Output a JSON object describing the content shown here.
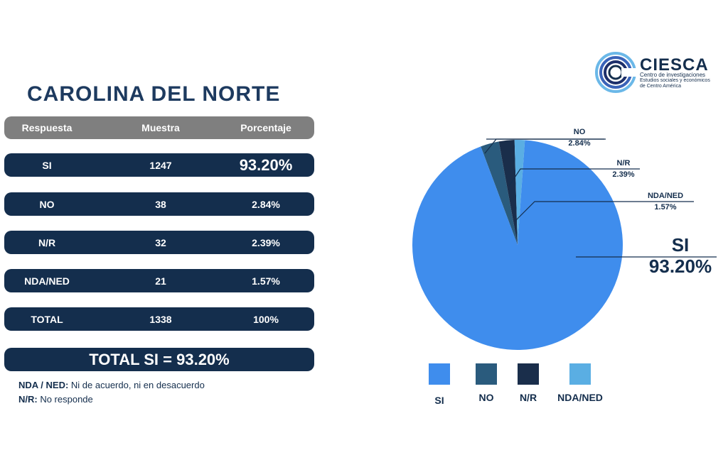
{
  "title": "CAROLINA DEL NORTE",
  "table": {
    "headers": [
      "Respuesta",
      "Muestra",
      "Porcentaje"
    ],
    "rows": [
      {
        "respuesta": "SI",
        "muestra": "1247",
        "porcentaje": "93.20%"
      },
      {
        "respuesta": "NO",
        "muestra": "38",
        "porcentaje": "2.84%"
      },
      {
        "respuesta": "N/R",
        "muestra": "32",
        "porcentaje": "2.39%"
      },
      {
        "respuesta": "NDA/NED",
        "muestra": "21",
        "porcentaje": "1.57%"
      },
      {
        "respuesta": "TOTAL",
        "muestra": "1338",
        "porcentaje": "100%"
      }
    ],
    "total_si": "TOTAL SI = 93.20%"
  },
  "notes": {
    "nda_key": "NDA / NED:",
    "nda_text": " Ni de acuerdo, ni en desacuerdo",
    "nr_key": "N/R:",
    "nr_text": " No responde"
  },
  "logo": {
    "name": "CIESCA",
    "line1": "Centro de investigaciones",
    "line2": "Estudios sociales y económicos",
    "line3": "de Centro América"
  },
  "colors": {
    "navy": "#142e4d",
    "si": "#3f8ded",
    "no": "#2a5b7d",
    "nr": "#1a2e4b",
    "nda": "#5aaee3"
  },
  "chart_data": {
    "type": "pie",
    "categories": [
      "SI",
      "NO",
      "N/R",
      "NDA/NED"
    ],
    "values": [
      93.2,
      2.84,
      2.39,
      1.57
    ],
    "labels": [
      "93.20%",
      "2.84%",
      "2.39%",
      "1.57%"
    ],
    "colors": [
      "#3f8ded",
      "#2a5b7d",
      "#1a2e4b",
      "#5aaee3"
    ],
    "legend": [
      "SI",
      "NO",
      "N/R",
      "NDA/NED"
    ]
  }
}
